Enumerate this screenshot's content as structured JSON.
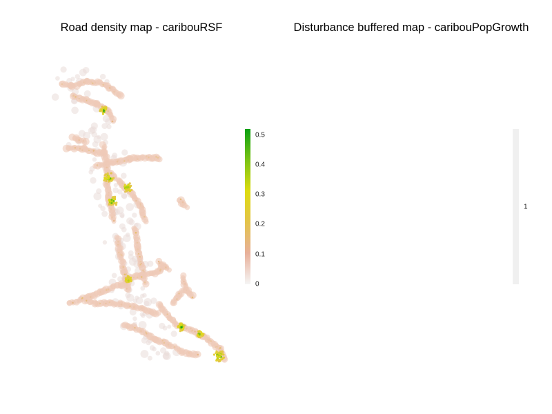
{
  "maps": [
    {
      "title": "Road density map - caribouRSF",
      "legend": {
        "type": "continuous",
        "range": [
          0,
          0.52
        ],
        "ticks": [
          "0",
          "0.1",
          "0.2",
          "0.3",
          "0.4",
          "0.5"
        ],
        "tick_values": [
          0,
          0.1,
          0.2,
          0.3,
          0.4,
          0.5
        ],
        "colors": [
          "#f5f5f5",
          "#e8b09a",
          "#e3c34a",
          "#dedc10",
          "#7bc314",
          "#0aa012"
        ]
      }
    },
    {
      "title": "Disturbance buffered map - caribouPopGrowth",
      "legend": {
        "type": "single",
        "ticks": [
          "1"
        ],
        "tick_values": [
          1
        ],
        "colors": [
          "#f0f0f0"
        ],
        "feature_color": "#5a0fa8"
      }
    }
  ]
}
